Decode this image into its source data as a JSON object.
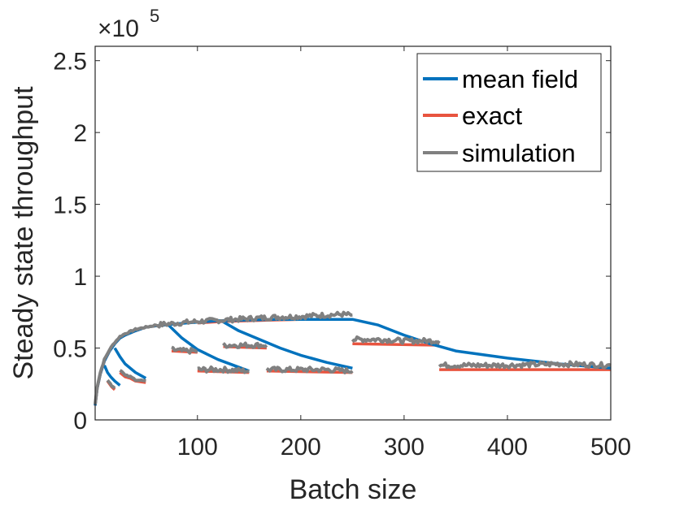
{
  "chart_data": {
    "type": "line",
    "xlabel": "Batch size",
    "ylabel": "Steady state throughput",
    "exponent_base": "×10",
    "exponent_power": "5",
    "xlim": [
      1,
      500
    ],
    "ylim": [
      0,
      2.6
    ],
    "y_unit_scale": 100000,
    "xticks": [
      100,
      200,
      300,
      400,
      500
    ],
    "xtick_labels": [
      "100",
      "200",
      "300",
      "400",
      "500"
    ],
    "yticks": [
      0,
      0.5,
      1,
      1.5,
      2,
      2.5
    ],
    "ytick_labels": [
      "0",
      "0.5",
      "1",
      "1.5",
      "2",
      "2.5"
    ],
    "grid": false,
    "legend_position": "top-right",
    "colors": {
      "mean_field": "#0072BD",
      "exact": "#E8543F",
      "simulation": "#808080"
    },
    "series": [
      {
        "name": "mean field",
        "key": "mean_field",
        "segments": [
          {
            "x": [
              1,
              3,
              6,
              10,
              15,
              20,
              25,
              30,
              40,
              50,
              60,
              75,
              90,
              100,
              120,
              150,
              175,
              200,
              225,
              250,
              275,
              300,
              325,
              350,
              400,
              450,
              500
            ],
            "y": [
              0.1,
              0.22,
              0.32,
              0.41,
              0.48,
              0.53,
              0.57,
              0.59,
              0.62,
              0.645,
              0.655,
              0.665,
              0.675,
              0.68,
              0.69,
              0.695,
              0.7,
              0.7,
              0.7,
              0.7,
              0.66,
              0.59,
              0.53,
              0.48,
              0.43,
              0.39,
              0.36
            ]
          },
          {
            "x": [
              10,
              13,
              16,
              20,
              25
            ],
            "y": [
              0.38,
              0.33,
              0.3,
              0.27,
              0.24
            ]
          },
          {
            "x": [
              20,
              25,
              30,
              40,
              50
            ],
            "y": [
              0.5,
              0.44,
              0.39,
              0.33,
              0.29
            ]
          },
          {
            "x": [
              72,
              85,
              100,
              120,
              150
            ],
            "y": [
              0.66,
              0.57,
              0.49,
              0.42,
              0.34
            ]
          },
          {
            "x": [
              123,
              140,
              160,
              180,
              200,
              225,
              250
            ],
            "y": [
              0.69,
              0.62,
              0.56,
              0.5,
              0.45,
              0.4,
              0.36
            ]
          }
        ]
      },
      {
        "name": "exact",
        "key": "exact",
        "segments": [
          {
            "x": [
              1,
              3,
              6,
              10,
              15,
              20,
              25,
              30,
              40,
              50,
              60,
              75
            ],
            "y": [
              0.1,
              0.22,
              0.32,
              0.41,
              0.48,
              0.53,
              0.57,
              0.59,
              0.62,
              0.645,
              0.655,
              0.665
            ]
          },
          {
            "x": [
              75,
              100
            ],
            "y": [
              0.48,
              0.47
            ]
          },
          {
            "x": [
              100,
              150
            ],
            "y": [
              0.34,
              0.33
            ]
          },
          {
            "x": [
              100,
              125,
              150,
              175,
              200,
              225,
              250
            ],
            "y": [
              0.675,
              0.685,
              0.69,
              0.695,
              0.7,
              0.7,
              0.7
            ]
          },
          {
            "x": [
              125,
              167
            ],
            "y": [
              0.51,
              0.5
            ]
          },
          {
            "x": [
              167,
              250
            ],
            "y": [
              0.34,
              0.33
            ]
          },
          {
            "x": [
              250,
              334
            ],
            "y": [
              0.53,
              0.52
            ]
          },
          {
            "x": [
              334,
              500
            ],
            "y": [
              0.35,
              0.35
            ]
          },
          {
            "x": [
              13,
              17,
              20
            ],
            "y": [
              0.27,
              0.23,
              0.21
            ]
          },
          {
            "x": [
              25,
              30,
              35,
              40,
              50
            ],
            "y": [
              0.33,
              0.3,
              0.29,
              0.27,
              0.26
            ]
          }
        ]
      },
      {
        "name": "simulation",
        "key": "simulation",
        "segments": [
          {
            "x": [
              1,
              3,
              6,
              10,
              15,
              20,
              25,
              30,
              40,
              50,
              60,
              75,
              100,
              125,
              150,
              175,
              200,
              225,
              240,
              250
            ],
            "y": [
              0.11,
              0.23,
              0.33,
              0.42,
              0.49,
              0.54,
              0.58,
              0.6,
              0.63,
              0.645,
              0.66,
              0.67,
              0.685,
              0.695,
              0.705,
              0.715,
              0.72,
              0.73,
              0.735,
              0.73
            ]
          },
          {
            "x": [
              75,
              85,
              100
            ],
            "y": [
              0.49,
              0.48,
              0.48
            ]
          },
          {
            "x": [
              100,
              125,
              150
            ],
            "y": [
              0.35,
              0.35,
              0.34
            ]
          },
          {
            "x": [
              125,
              145,
              167
            ],
            "y": [
              0.52,
              0.52,
              0.52
            ]
          },
          {
            "x": [
              167,
              200,
              225,
              250
            ],
            "y": [
              0.35,
              0.35,
              0.35,
              0.34
            ]
          },
          {
            "x": [
              250,
              275,
              300,
              334
            ],
            "y": [
              0.56,
              0.56,
              0.55,
              0.55
            ]
          },
          {
            "x": [
              334,
              400,
              450,
              500
            ],
            "y": [
              0.38,
              0.38,
              0.39,
              0.38
            ]
          },
          {
            "x": [
              13,
              17,
              20
            ],
            "y": [
              0.28,
              0.24,
              0.22
            ]
          },
          {
            "x": [
              25,
              30,
              35,
              40,
              50
            ],
            "y": [
              0.35,
              0.31,
              0.3,
              0.28,
              0.27
            ]
          }
        ]
      }
    ]
  }
}
